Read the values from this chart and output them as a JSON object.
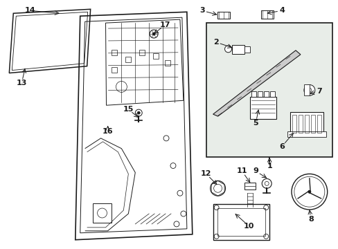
{
  "bg_color": "#ffffff",
  "line_color": "#1a1a1a",
  "box_bg": "#e8ede8",
  "figsize": [
    4.89,
    3.6
  ],
  "dpi": 100
}
